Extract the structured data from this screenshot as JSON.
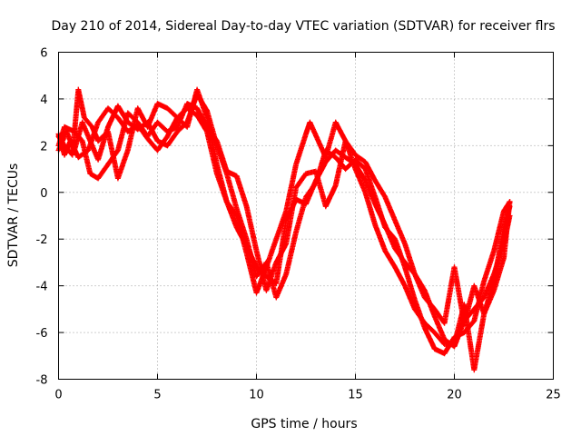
{
  "chart_data": {
    "type": "scatter",
    "title": "Day 210 of 2014, Sidereal Day-to-day VTEC variation (SDTVAR) for receiver flrs",
    "xlabel": "GPS time / hours",
    "ylabel": "SDTVAR / TECUs",
    "xlim": [
      0,
      25
    ],
    "ylim": [
      -8,
      6
    ],
    "xticks": [
      0,
      5,
      10,
      15,
      20,
      25
    ],
    "yticks": [
      -8,
      -6,
      -4,
      -2,
      0,
      2,
      4,
      6
    ],
    "xtick_labels": [
      "0",
      "5",
      "10",
      "15",
      "20",
      "25"
    ],
    "ytick_labels": [
      "-8",
      "-6",
      "-4",
      "-2",
      "0",
      "2",
      "4",
      "6"
    ],
    "grid": true,
    "marker": "+",
    "color": "#ff0000",
    "series": [
      {
        "name": "track-1",
        "points": [
          [
            0,
            2.5
          ],
          [
            0.3,
            1.6
          ],
          [
            0.6,
            2.2
          ],
          [
            1.0,
            1.5
          ],
          [
            1.5,
            1.8
          ],
          [
            2.0,
            3.0
          ],
          [
            2.5,
            3.6
          ],
          [
            3.0,
            3.2
          ],
          [
            3.5,
            2.6
          ],
          [
            4.0,
            2.9
          ],
          [
            4.5,
            2.3
          ],
          [
            5.0,
            1.8
          ],
          [
            5.5,
            2.4
          ],
          [
            6.0,
            3.2
          ],
          [
            6.5,
            3.6
          ],
          [
            7.0,
            3.3
          ],
          [
            7.5,
            2.6
          ],
          [
            8.0,
            0.8
          ],
          [
            8.5,
            -0.4
          ],
          [
            9.0,
            -1.5
          ],
          [
            9.5,
            -2.3
          ],
          [
            10.0,
            -3.2
          ],
          [
            10.5,
            -3.6
          ],
          [
            11.0,
            -3.9
          ],
          [
            11.5,
            -1.2
          ],
          [
            12.0,
            -0.3
          ],
          [
            12.5,
            -0.5
          ],
          [
            13.0,
            0.5
          ],
          [
            13.5,
            1.3
          ],
          [
            14.0,
            1.8
          ],
          [
            14.5,
            1.5
          ],
          [
            15.0,
            1.2
          ],
          [
            15.5,
            0.5
          ],
          [
            16.0,
            -0.5
          ],
          [
            16.5,
            -1.4
          ],
          [
            17.0,
            -2.4
          ],
          [
            17.5,
            -3.0
          ],
          [
            18.0,
            -3.5
          ],
          [
            18.5,
            -4.2
          ],
          [
            19.0,
            -5.3
          ],
          [
            19.5,
            -6.3
          ],
          [
            20.0,
            -6.6
          ],
          [
            20.5,
            -5.5
          ],
          [
            21.0,
            -5.0
          ],
          [
            21.5,
            -4.5
          ],
          [
            22.0,
            -3.5
          ],
          [
            22.5,
            -2.2
          ],
          [
            22.8,
            -1.0
          ]
        ]
      },
      {
        "name": "track-2",
        "points": [
          [
            0,
            1.8
          ],
          [
            0.4,
            2.6
          ],
          [
            0.8,
            1.8
          ],
          [
            1.2,
            3.0
          ],
          [
            1.6,
            2.2
          ],
          [
            2.0,
            1.4
          ],
          [
            2.5,
            2.8
          ],
          [
            3.0,
            3.7
          ],
          [
            3.5,
            3.0
          ],
          [
            4.0,
            2.7
          ],
          [
            4.5,
            3.0
          ],
          [
            5.0,
            2.2
          ],
          [
            5.5,
            2.0
          ],
          [
            6.0,
            2.6
          ],
          [
            6.5,
            3.0
          ],
          [
            7.0,
            4.2
          ],
          [
            7.5,
            3.5
          ],
          [
            8.0,
            2.0
          ],
          [
            8.5,
            0.8
          ],
          [
            9.0,
            -0.7
          ],
          [
            9.5,
            -2.0
          ],
          [
            10.0,
            -3.6
          ],
          [
            10.5,
            -3.0
          ],
          [
            11.0,
            -4.5
          ],
          [
            11.5,
            -3.5
          ],
          [
            12.0,
            -1.7
          ],
          [
            12.5,
            -0.2
          ],
          [
            13.0,
            0.4
          ],
          [
            13.5,
            1.8
          ],
          [
            14.0,
            1.5
          ],
          [
            14.5,
            1.0
          ],
          [
            15.0,
            1.4
          ],
          [
            15.5,
            1.0
          ],
          [
            16.0,
            -0.2
          ],
          [
            16.5,
            -1.5
          ],
          [
            17.0,
            -2.0
          ],
          [
            17.5,
            -3.2
          ],
          [
            18.0,
            -4.6
          ],
          [
            18.5,
            -5.8
          ],
          [
            19.0,
            -6.7
          ],
          [
            19.5,
            -6.9
          ],
          [
            20.0,
            -6.2
          ],
          [
            20.5,
            -6.0
          ],
          [
            21.0,
            -5.5
          ],
          [
            21.5,
            -3.8
          ],
          [
            22.0,
            -2.5
          ],
          [
            22.5,
            -0.8
          ],
          [
            22.8,
            -0.4
          ]
        ]
      },
      {
        "name": "track-3",
        "points": [
          [
            0,
            2.0
          ],
          [
            0.3,
            2.8
          ],
          [
            0.8,
            2.6
          ],
          [
            1.2,
            2.2
          ],
          [
            1.6,
            0.8
          ],
          [
            2.0,
            0.6
          ],
          [
            2.5,
            1.2
          ],
          [
            3.0,
            1.8
          ],
          [
            3.5,
            3.4
          ],
          [
            4.0,
            3.0
          ],
          [
            4.5,
            2.4
          ],
          [
            5.0,
            3.0
          ],
          [
            5.5,
            2.6
          ],
          [
            6.0,
            2.8
          ],
          [
            6.5,
            3.8
          ],
          [
            7.0,
            3.6
          ],
          [
            7.5,
            2.8
          ],
          [
            8.0,
            2.2
          ],
          [
            8.5,
            0.9
          ],
          [
            9.0,
            0.7
          ],
          [
            9.5,
            -0.6
          ],
          [
            10.0,
            -2.5
          ],
          [
            10.5,
            -4.2
          ],
          [
            11.0,
            -3.0
          ],
          [
            11.5,
            -2.2
          ],
          [
            12.0,
            0.2
          ],
          [
            12.5,
            0.8
          ],
          [
            13.0,
            0.9
          ],
          [
            13.5,
            -0.6
          ],
          [
            14.0,
            0.3
          ],
          [
            14.5,
            2.2
          ],
          [
            15.0,
            1.0
          ],
          [
            15.5,
            0.0
          ],
          [
            16.0,
            -1.4
          ],
          [
            16.5,
            -2.5
          ],
          [
            17.0,
            -3.2
          ],
          [
            17.5,
            -4.0
          ],
          [
            18.0,
            -5.0
          ],
          [
            18.5,
            -5.6
          ],
          [
            19.0,
            -6.0
          ],
          [
            19.5,
            -6.5
          ],
          [
            20.0,
            -6.5
          ],
          [
            20.5,
            -4.8
          ],
          [
            21.0,
            -7.6
          ],
          [
            21.5,
            -5.2
          ],
          [
            22.0,
            -3.8
          ],
          [
            22.5,
            -1.5
          ],
          [
            22.8,
            -0.6
          ]
        ]
      },
      {
        "name": "track-4",
        "points": [
          [
            0,
            2.4
          ],
          [
            0.3,
            2.0
          ],
          [
            0.7,
            1.6
          ],
          [
            1.0,
            4.4
          ],
          [
            1.3,
            3.2
          ],
          [
            1.7,
            2.8
          ],
          [
            2.0,
            2.2
          ],
          [
            2.5,
            2.6
          ],
          [
            3.0,
            0.6
          ],
          [
            3.5,
            1.8
          ],
          [
            4.0,
            3.6
          ],
          [
            4.5,
            2.8
          ],
          [
            5.0,
            3.8
          ],
          [
            5.5,
            3.6
          ],
          [
            6.0,
            3.2
          ],
          [
            6.5,
            2.8
          ],
          [
            7.0,
            4.4
          ],
          [
            7.5,
            3.2
          ],
          [
            8.0,
            1.2
          ],
          [
            8.5,
            -0.4
          ],
          [
            9.0,
            -1.0
          ],
          [
            9.5,
            -2.6
          ],
          [
            10.0,
            -4.3
          ],
          [
            10.5,
            -3.2
          ],
          [
            11.0,
            -2.0
          ],
          [
            11.5,
            -0.8
          ],
          [
            12.0,
            1.2
          ],
          [
            12.5,
            2.5
          ],
          [
            12.7,
            3.0
          ],
          [
            13.5,
            1.5
          ],
          [
            14.0,
            3.0
          ],
          [
            14.5,
            2.2
          ],
          [
            15.0,
            1.6
          ],
          [
            15.5,
            1.3
          ],
          [
            16.0,
            0.5
          ],
          [
            16.5,
            -0.2
          ],
          [
            17.0,
            -1.2
          ],
          [
            17.5,
            -2.2
          ],
          [
            18.0,
            -3.5
          ],
          [
            18.5,
            -4.5
          ],
          [
            19.0,
            -5.0
          ],
          [
            19.5,
            -5.6
          ],
          [
            20.0,
            -3.2
          ],
          [
            20.5,
            -5.6
          ],
          [
            21.0,
            -4.0
          ],
          [
            21.5,
            -5.2
          ],
          [
            22.0,
            -4.2
          ],
          [
            22.5,
            -2.8
          ],
          [
            22.8,
            -0.4
          ]
        ]
      }
    ]
  }
}
